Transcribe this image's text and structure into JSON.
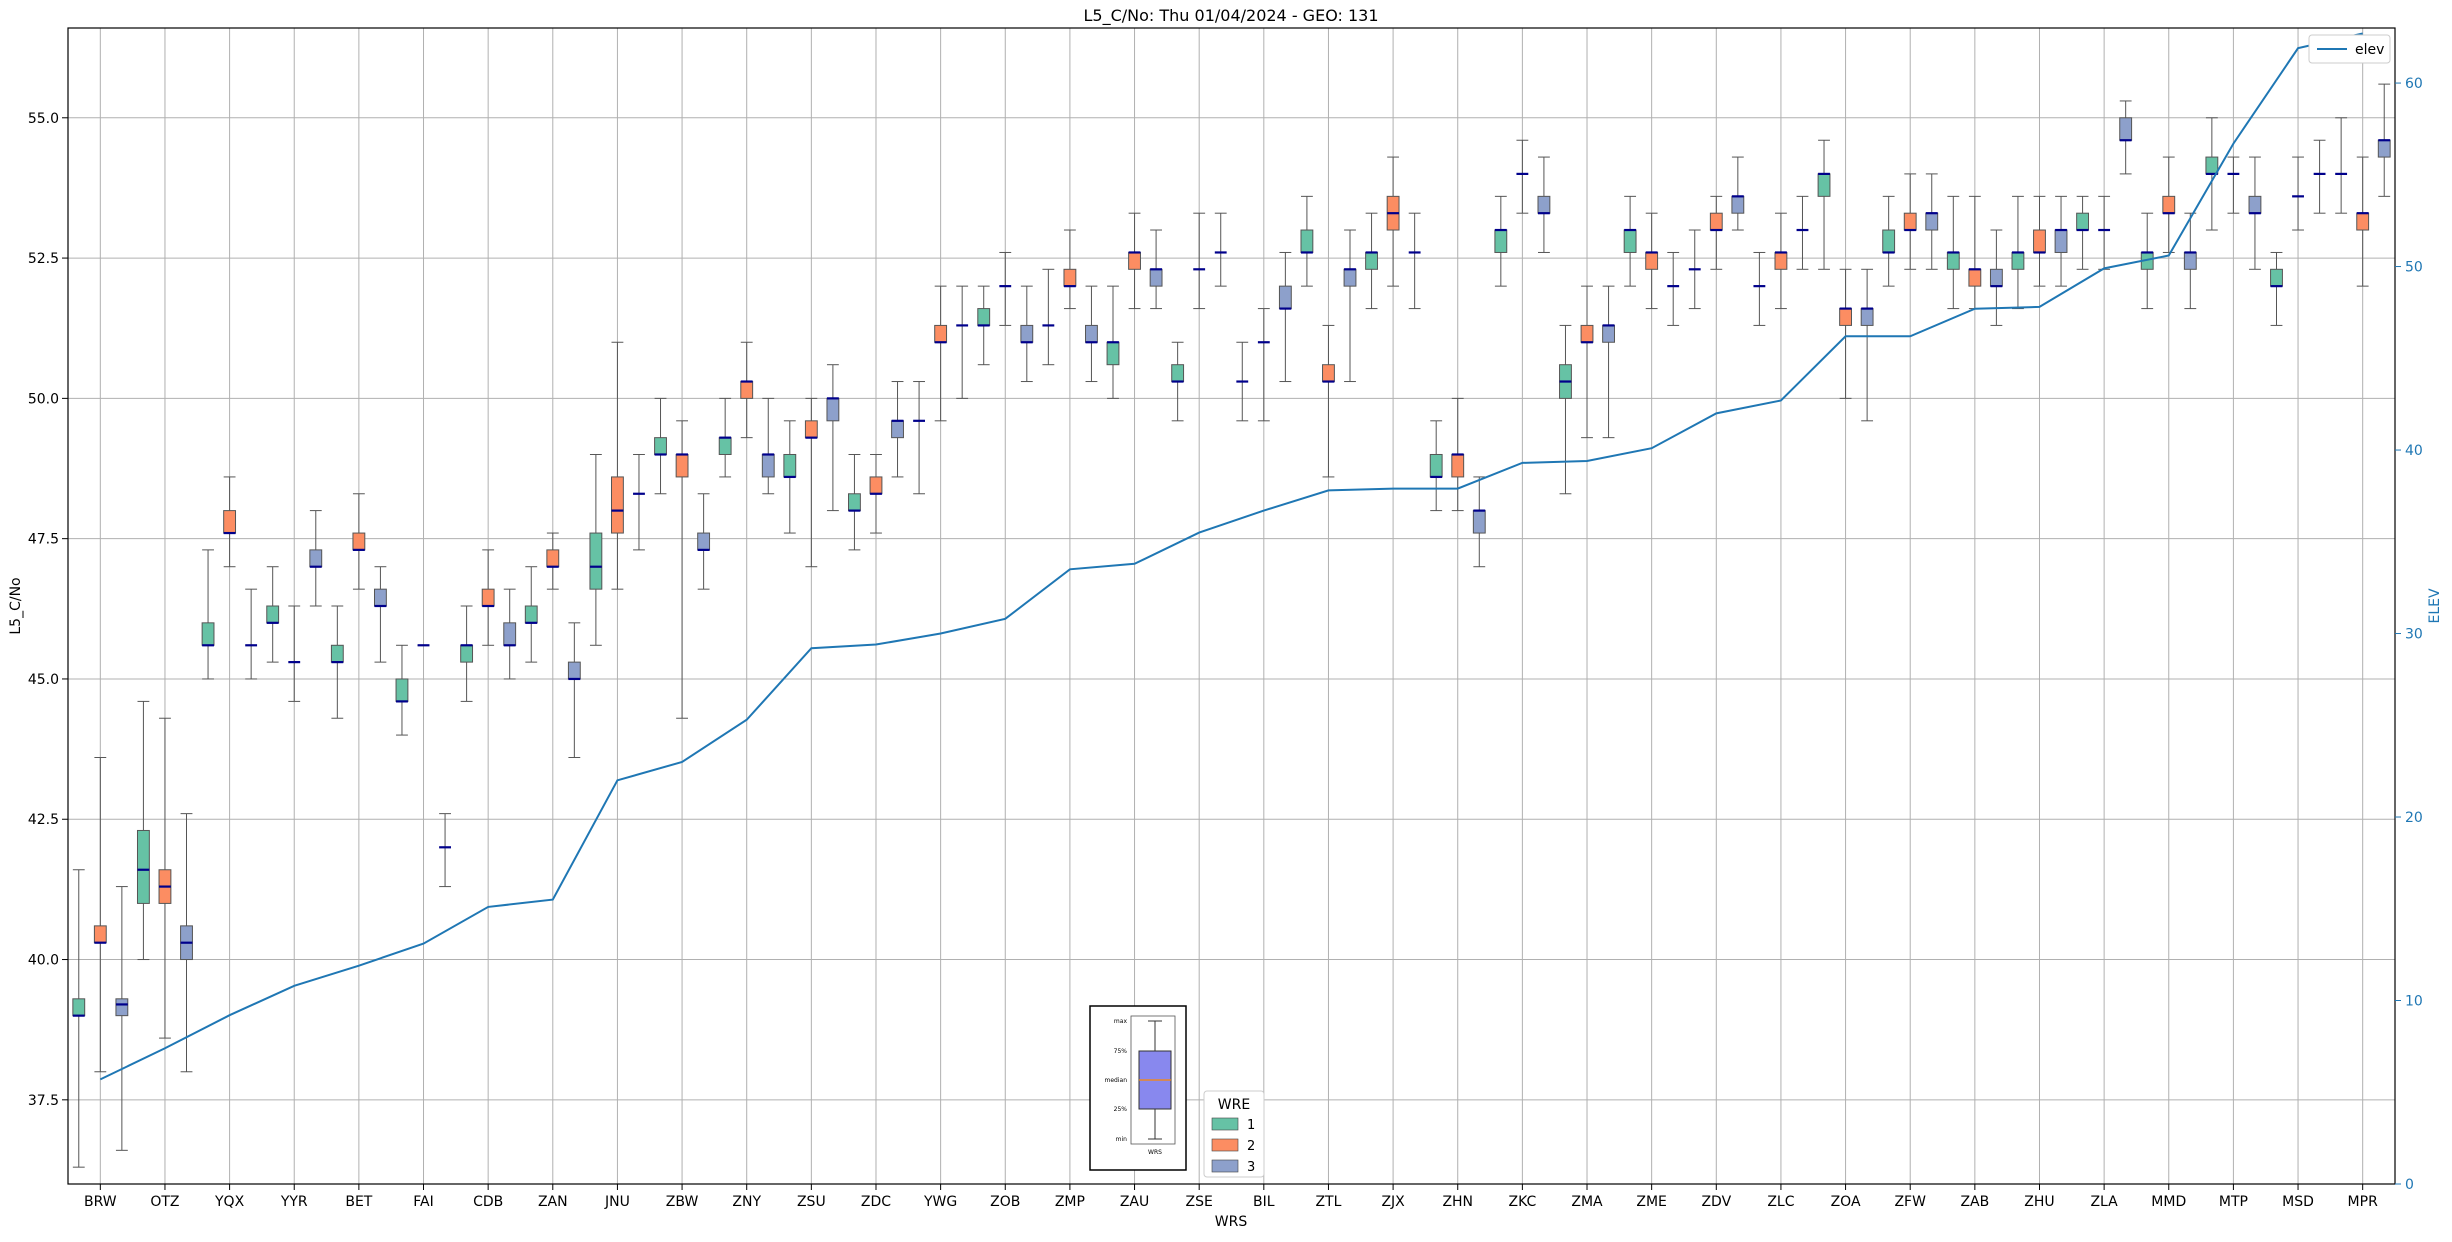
{
  "chart_data": {
    "type": "box",
    "title": "L5_C/No: Thu 01/04/2024 - GEO: 131",
    "xlabel": "WRS",
    "ylabel": "L5_C/No",
    "y2label": "ELEV",
    "ylim": [
      36.0,
      56.6
    ],
    "y2lim": [
      0,
      63
    ],
    "yticks": [
      "37.5",
      "40.0",
      "42.5",
      "45.0",
      "47.5",
      "50.0",
      "52.5",
      "55.0"
    ],
    "y2ticks": [
      "0",
      "10",
      "20",
      "30",
      "40",
      "50",
      "60"
    ],
    "grid": true,
    "categories": [
      "BRW",
      "OTZ",
      "YQX",
      "YYR",
      "BET",
      "FAI",
      "CDB",
      "ZAN",
      "JNU",
      "ZBW",
      "ZNY",
      "ZSU",
      "ZDC",
      "YWG",
      "ZOB",
      "ZMP",
      "ZAU",
      "ZSE",
      "BIL",
      "ZTL",
      "ZJX",
      "ZHN",
      "ZKC",
      "ZMA",
      "ZME",
      "ZDV",
      "ZLC",
      "ZOA",
      "ZFW",
      "ZAB",
      "ZHU",
      "ZLA",
      "MMD",
      "MTP",
      "MSD",
      "MPR"
    ],
    "legend_title": "WRE",
    "legend_placement": "bottom-center",
    "wre_colors": {
      "1": "#66c2a5",
      "2": "#fc8d62",
      "3": "#8da0cb"
    },
    "wre_series": [
      {
        "name": "1",
        "color": "#66c2a5"
      },
      {
        "name": "2",
        "color": "#fc8d62"
      },
      {
        "name": "3",
        "color": "#8da0cb"
      }
    ],
    "median_color": "#00008b",
    "boxes": [
      {
        "cat": "BRW",
        "wre": 1,
        "min": 36.3,
        "q1": 39.0,
        "med": 39.0,
        "q3": 39.3,
        "max": 41.6
      },
      {
        "cat": "BRW",
        "wre": 2,
        "min": 38.0,
        "q1": 40.3,
        "med": 40.3,
        "q3": 40.6,
        "max": 43.6
      },
      {
        "cat": "BRW",
        "wre": 3,
        "min": 36.6,
        "q1": 39.0,
        "med": 39.2,
        "q3": 39.3,
        "max": 41.3
      },
      {
        "cat": "OTZ",
        "wre": 1,
        "min": 40.0,
        "q1": 41.0,
        "med": 41.6,
        "q3": 42.3,
        "max": 44.6
      },
      {
        "cat": "OTZ",
        "wre": 2,
        "min": 38.6,
        "q1": 41.0,
        "med": 41.3,
        "q3": 41.6,
        "max": 44.3
      },
      {
        "cat": "OTZ",
        "wre": 3,
        "min": 38.0,
        "q1": 40.0,
        "med": 40.3,
        "q3": 40.6,
        "max": 42.6
      },
      {
        "cat": "YQX",
        "wre": 1,
        "min": 45.0,
        "q1": 45.6,
        "med": 45.6,
        "q3": 46.0,
        "max": 47.3
      },
      {
        "cat": "YQX",
        "wre": 2,
        "min": 47.0,
        "q1": 47.6,
        "med": 47.6,
        "q3": 48.0,
        "max": 48.6
      },
      {
        "cat": "YQX",
        "wre": 3,
        "min": 45.0,
        "q1": 45.6,
        "med": 45.6,
        "q3": 45.6,
        "max": 46.6
      },
      {
        "cat": "YYR",
        "wre": 1,
        "min": 45.3,
        "q1": 46.0,
        "med": 46.0,
        "q3": 46.3,
        "max": 47.0
      },
      {
        "cat": "YYR",
        "wre": 2,
        "min": 44.6,
        "q1": 45.3,
        "med": 45.3,
        "q3": 45.3,
        "max": 46.3
      },
      {
        "cat": "YYR",
        "wre": 3,
        "min": 46.3,
        "q1": 47.0,
        "med": 47.0,
        "q3": 47.3,
        "max": 48.0
      },
      {
        "cat": "BET",
        "wre": 1,
        "min": 44.3,
        "q1": 45.3,
        "med": 45.3,
        "q3": 45.6,
        "max": 46.3
      },
      {
        "cat": "BET",
        "wre": 2,
        "min": 46.6,
        "q1": 47.3,
        "med": 47.3,
        "q3": 47.6,
        "max": 48.3
      },
      {
        "cat": "BET",
        "wre": 3,
        "min": 45.3,
        "q1": 46.3,
        "med": 46.3,
        "q3": 46.6,
        "max": 47.0
      },
      {
        "cat": "FAI",
        "wre": 1,
        "min": 44.0,
        "q1": 44.6,
        "med": 44.6,
        "q3": 45.0,
        "max": 45.6
      },
      {
        "cat": "FAI",
        "wre": 2,
        "min": 45.6,
        "q1": 45.6,
        "med": 45.6,
        "q3": 45.6,
        "max": 45.6
      },
      {
        "cat": "FAI",
        "wre": 3,
        "min": 41.3,
        "q1": 42.0,
        "med": 42.0,
        "q3": 42.0,
        "max": 42.6
      },
      {
        "cat": "CDB",
        "wre": 1,
        "min": 44.6,
        "q1": 45.3,
        "med": 45.6,
        "q3": 45.6,
        "max": 46.3
      },
      {
        "cat": "CDB",
        "wre": 2,
        "min": 45.6,
        "q1": 46.3,
        "med": 46.3,
        "q3": 46.6,
        "max": 47.3
      },
      {
        "cat": "CDB",
        "wre": 3,
        "min": 45.0,
        "q1": 45.6,
        "med": 45.6,
        "q3": 46.0,
        "max": 46.6
      },
      {
        "cat": "ZAN",
        "wre": 1,
        "min": 45.3,
        "q1": 46.0,
        "med": 46.0,
        "q3": 46.3,
        "max": 47.0
      },
      {
        "cat": "ZAN",
        "wre": 2,
        "min": 46.6,
        "q1": 47.0,
        "med": 47.0,
        "q3": 47.3,
        "max": 47.6
      },
      {
        "cat": "ZAN",
        "wre": 3,
        "min": 43.6,
        "q1": 45.0,
        "med": 45.0,
        "q3": 45.3,
        "max": 46.0
      },
      {
        "cat": "JNU",
        "wre": 1,
        "min": 45.6,
        "q1": 46.6,
        "med": 47.0,
        "q3": 47.6,
        "max": 49.0
      },
      {
        "cat": "JNU",
        "wre": 2,
        "min": 46.6,
        "q1": 47.6,
        "med": 48.0,
        "q3": 48.6,
        "max": 51.0
      },
      {
        "cat": "JNU",
        "wre": 3,
        "min": 47.3,
        "q1": 48.3,
        "med": 48.3,
        "q3": 48.3,
        "max": 49.0
      },
      {
        "cat": "ZBW",
        "wre": 1,
        "min": 48.3,
        "q1": 49.0,
        "med": 49.0,
        "q3": 49.3,
        "max": 50.0
      },
      {
        "cat": "ZBW",
        "wre": 2,
        "min": 44.3,
        "q1": 48.6,
        "med": 49.0,
        "q3": 49.0,
        "max": 49.6
      },
      {
        "cat": "ZBW",
        "wre": 3,
        "min": 46.6,
        "q1": 47.3,
        "med": 47.3,
        "q3": 47.6,
        "max": 48.3
      },
      {
        "cat": "ZNY",
        "wre": 1,
        "min": 48.6,
        "q1": 49.0,
        "med": 49.3,
        "q3": 49.3,
        "max": 50.0
      },
      {
        "cat": "ZNY",
        "wre": 2,
        "min": 49.3,
        "q1": 50.0,
        "med": 50.3,
        "q3": 50.3,
        "max": 51.0
      },
      {
        "cat": "ZNY",
        "wre": 3,
        "min": 48.3,
        "q1": 48.6,
        "med": 49.0,
        "q3": 49.0,
        "max": 50.0
      },
      {
        "cat": "ZSU",
        "wre": 1,
        "min": 47.6,
        "q1": 48.6,
        "med": 48.6,
        "q3": 49.0,
        "max": 49.6
      },
      {
        "cat": "ZSU",
        "wre": 2,
        "min": 47.0,
        "q1": 49.3,
        "med": 49.3,
        "q3": 49.6,
        "max": 50.0
      },
      {
        "cat": "ZSU",
        "wre": 3,
        "min": 48.0,
        "q1": 49.6,
        "med": 50.0,
        "q3": 50.0,
        "max": 50.6
      },
      {
        "cat": "ZDC",
        "wre": 1,
        "min": 47.3,
        "q1": 48.0,
        "med": 48.0,
        "q3": 48.3,
        "max": 49.0
      },
      {
        "cat": "ZDC",
        "wre": 2,
        "min": 47.6,
        "q1": 48.3,
        "med": 48.3,
        "q3": 48.6,
        "max": 49.0
      },
      {
        "cat": "ZDC",
        "wre": 3,
        "min": 48.6,
        "q1": 49.3,
        "med": 49.6,
        "q3": 49.6,
        "max": 50.3
      },
      {
        "cat": "YWG",
        "wre": 1,
        "min": 48.3,
        "q1": 49.6,
        "med": 49.6,
        "q3": 49.6,
        "max": 50.3
      },
      {
        "cat": "YWG",
        "wre": 2,
        "min": 49.6,
        "q1": 51.0,
        "med": 51.0,
        "q3": 51.3,
        "max": 52.0
      },
      {
        "cat": "YWG",
        "wre": 3,
        "min": 50.0,
        "q1": 51.3,
        "med": 51.3,
        "q3": 51.3,
        "max": 52.0
      },
      {
        "cat": "ZOB",
        "wre": 1,
        "min": 50.6,
        "q1": 51.3,
        "med": 51.3,
        "q3": 51.6,
        "max": 52.0
      },
      {
        "cat": "ZOB",
        "wre": 2,
        "min": 51.3,
        "q1": 52.0,
        "med": 52.0,
        "q3": 52.0,
        "max": 52.6
      },
      {
        "cat": "ZOB",
        "wre": 3,
        "min": 50.3,
        "q1": 51.0,
        "med": 51.0,
        "q3": 51.3,
        "max": 52.0
      },
      {
        "cat": "ZMP",
        "wre": 1,
        "min": 50.6,
        "q1": 51.3,
        "med": 51.3,
        "q3": 51.3,
        "max": 52.3
      },
      {
        "cat": "ZMP",
        "wre": 2,
        "min": 51.6,
        "q1": 52.0,
        "med": 52.0,
        "q3": 52.3,
        "max": 53.0
      },
      {
        "cat": "ZMP",
        "wre": 3,
        "min": 50.3,
        "q1": 51.0,
        "med": 51.0,
        "q3": 51.3,
        "max": 52.0
      },
      {
        "cat": "ZAU",
        "wre": 1,
        "min": 50.0,
        "q1": 50.6,
        "med": 51.0,
        "q3": 51.0,
        "max": 52.0
      },
      {
        "cat": "ZAU",
        "wre": 2,
        "min": 51.6,
        "q1": 52.3,
        "med": 52.6,
        "q3": 52.6,
        "max": 53.3
      },
      {
        "cat": "ZAU",
        "wre": 3,
        "min": 51.6,
        "q1": 52.0,
        "med": 52.3,
        "q3": 52.3,
        "max": 53.0
      },
      {
        "cat": "ZSE",
        "wre": 1,
        "min": 49.6,
        "q1": 50.3,
        "med": 50.3,
        "q3": 50.6,
        "max": 51.0
      },
      {
        "cat": "ZSE",
        "wre": 2,
        "min": 51.6,
        "q1": 52.3,
        "med": 52.3,
        "q3": 52.3,
        "max": 53.3
      },
      {
        "cat": "ZSE",
        "wre": 3,
        "min": 52.0,
        "q1": 52.6,
        "med": 52.6,
        "q3": 52.6,
        "max": 53.3
      },
      {
        "cat": "BIL",
        "wre": 1,
        "min": 49.6,
        "q1": 50.3,
        "med": 50.3,
        "q3": 50.3,
        "max": 51.0
      },
      {
        "cat": "BIL",
        "wre": 2,
        "min": 49.6,
        "q1": 51.0,
        "med": 51.0,
        "q3": 51.0,
        "max": 51.6
      },
      {
        "cat": "BIL",
        "wre": 3,
        "min": 50.3,
        "q1": 51.6,
        "med": 51.6,
        "q3": 52.0,
        "max": 52.6
      },
      {
        "cat": "ZTL",
        "wre": 1,
        "min": 52.0,
        "q1": 52.6,
        "med": 52.6,
        "q3": 53.0,
        "max": 53.6
      },
      {
        "cat": "ZTL",
        "wre": 2,
        "min": 48.6,
        "q1": 50.3,
        "med": 50.3,
        "q3": 50.6,
        "max": 51.3
      },
      {
        "cat": "ZTL",
        "wre": 3,
        "min": 50.3,
        "q1": 52.0,
        "med": 52.3,
        "q3": 52.3,
        "max": 53.0
      },
      {
        "cat": "ZJX",
        "wre": 1,
        "min": 51.6,
        "q1": 52.3,
        "med": 52.6,
        "q3": 52.6,
        "max": 53.3
      },
      {
        "cat": "ZJX",
        "wre": 2,
        "min": 52.0,
        "q1": 53.0,
        "med": 53.3,
        "q3": 53.6,
        "max": 54.3
      },
      {
        "cat": "ZJX",
        "wre": 3,
        "min": 51.6,
        "q1": 52.6,
        "med": 52.6,
        "q3": 52.6,
        "max": 53.3
      },
      {
        "cat": "ZHN",
        "wre": 1,
        "min": 48.0,
        "q1": 48.6,
        "med": 48.6,
        "q3": 49.0,
        "max": 49.6
      },
      {
        "cat": "ZHN",
        "wre": 2,
        "min": 48.0,
        "q1": 48.6,
        "med": 49.0,
        "q3": 49.0,
        "max": 50.0
      },
      {
        "cat": "ZHN",
        "wre": 3,
        "min": 47.0,
        "q1": 47.6,
        "med": 48.0,
        "q3": 48.0,
        "max": 48.6
      },
      {
        "cat": "ZKC",
        "wre": 1,
        "min": 52.0,
        "q1": 52.6,
        "med": 53.0,
        "q3": 53.0,
        "max": 53.6
      },
      {
        "cat": "ZKC",
        "wre": 2,
        "min": 53.3,
        "q1": 54.0,
        "med": 54.0,
        "q3": 54.0,
        "max": 54.6
      },
      {
        "cat": "ZKC",
        "wre": 3,
        "min": 52.6,
        "q1": 53.3,
        "med": 53.3,
        "q3": 53.6,
        "max": 54.3
      },
      {
        "cat": "ZMA",
        "wre": 1,
        "min": 48.3,
        "q1": 50.0,
        "med": 50.3,
        "q3": 50.6,
        "max": 51.3
      },
      {
        "cat": "ZMA",
        "wre": 2,
        "min": 49.3,
        "q1": 51.0,
        "med": 51.0,
        "q3": 51.3,
        "max": 52.0
      },
      {
        "cat": "ZMA",
        "wre": 3,
        "min": 49.3,
        "q1": 51.0,
        "med": 51.3,
        "q3": 51.3,
        "max": 52.0
      },
      {
        "cat": "ZME",
        "wre": 1,
        "min": 52.0,
        "q1": 52.6,
        "med": 53.0,
        "q3": 53.0,
        "max": 53.6
      },
      {
        "cat": "ZME",
        "wre": 2,
        "min": 51.6,
        "q1": 52.3,
        "med": 52.6,
        "q3": 52.6,
        "max": 53.3
      },
      {
        "cat": "ZME",
        "wre": 3,
        "min": 51.3,
        "q1": 52.0,
        "med": 52.0,
        "q3": 52.0,
        "max": 52.6
      },
      {
        "cat": "ZDV",
        "wre": 1,
        "min": 51.6,
        "q1": 52.3,
        "med": 52.3,
        "q3": 52.3,
        "max": 53.0
      },
      {
        "cat": "ZDV",
        "wre": 2,
        "min": 52.3,
        "q1": 53.0,
        "med": 53.0,
        "q3": 53.3,
        "max": 53.6
      },
      {
        "cat": "ZDV",
        "wre": 3,
        "min": 53.0,
        "q1": 53.3,
        "med": 53.6,
        "q3": 53.6,
        "max": 54.3
      },
      {
        "cat": "ZLC",
        "wre": 1,
        "min": 51.3,
        "q1": 52.0,
        "med": 52.0,
        "q3": 52.0,
        "max": 52.6
      },
      {
        "cat": "ZLC",
        "wre": 2,
        "min": 51.6,
        "q1": 52.3,
        "med": 52.6,
        "q3": 52.6,
        "max": 53.3
      },
      {
        "cat": "ZLC",
        "wre": 3,
        "min": 52.3,
        "q1": 53.0,
        "med": 53.0,
        "q3": 53.0,
        "max": 53.6
      },
      {
        "cat": "ZOA",
        "wre": 1,
        "min": 52.3,
        "q1": 53.6,
        "med": 54.0,
        "q3": 54.0,
        "max": 54.6
      },
      {
        "cat": "ZOA",
        "wre": 2,
        "min": 50.0,
        "q1": 51.3,
        "med": 51.6,
        "q3": 51.6,
        "max": 52.3
      },
      {
        "cat": "ZOA",
        "wre": 3,
        "min": 49.6,
        "q1": 51.3,
        "med": 51.6,
        "q3": 51.6,
        "max": 52.3
      },
      {
        "cat": "ZFW",
        "wre": 1,
        "min": 52.0,
        "q1": 52.6,
        "med": 52.6,
        "q3": 53.0,
        "max": 53.6
      },
      {
        "cat": "ZFW",
        "wre": 2,
        "min": 52.3,
        "q1": 53.0,
        "med": 53.0,
        "q3": 53.3,
        "max": 54.0
      },
      {
        "cat": "ZFW",
        "wre": 3,
        "min": 52.3,
        "q1": 53.0,
        "med": 53.3,
        "q3": 53.3,
        "max": 54.0
      },
      {
        "cat": "ZAB",
        "wre": 1,
        "min": 51.6,
        "q1": 52.3,
        "med": 52.6,
        "q3": 52.6,
        "max": 53.6
      },
      {
        "cat": "ZAB",
        "wre": 2,
        "min": 51.6,
        "q1": 52.0,
        "med": 52.3,
        "q3": 52.3,
        "max": 53.6
      },
      {
        "cat": "ZAB",
        "wre": 3,
        "min": 51.3,
        "q1": 52.0,
        "med": 52.0,
        "q3": 52.3,
        "max": 53.0
      },
      {
        "cat": "ZHU",
        "wre": 1,
        "min": 51.6,
        "q1": 52.3,
        "med": 52.6,
        "q3": 52.6,
        "max": 53.6
      },
      {
        "cat": "ZHU",
        "wre": 2,
        "min": 52.0,
        "q1": 52.6,
        "med": 52.6,
        "q3": 53.0,
        "max": 53.6
      },
      {
        "cat": "ZHU",
        "wre": 3,
        "min": 52.0,
        "q1": 52.6,
        "med": 53.0,
        "q3": 53.0,
        "max": 53.6
      },
      {
        "cat": "ZLA",
        "wre": 1,
        "min": 52.3,
        "q1": 53.0,
        "med": 53.0,
        "q3": 53.3,
        "max": 53.6
      },
      {
        "cat": "ZLA",
        "wre": 2,
        "min": 52.3,
        "q1": 53.0,
        "med": 53.0,
        "q3": 53.0,
        "max": 53.6
      },
      {
        "cat": "ZLA",
        "wre": 3,
        "min": 54.0,
        "q1": 54.6,
        "med": 54.6,
        "q3": 55.0,
        "max": 55.3
      },
      {
        "cat": "MMD",
        "wre": 1,
        "min": 51.6,
        "q1": 52.3,
        "med": 52.6,
        "q3": 52.6,
        "max": 53.3
      },
      {
        "cat": "MMD",
        "wre": 2,
        "min": 52.6,
        "q1": 53.3,
        "med": 53.3,
        "q3": 53.6,
        "max": 54.3
      },
      {
        "cat": "MMD",
        "wre": 3,
        "min": 51.6,
        "q1": 52.3,
        "med": 52.6,
        "q3": 52.6,
        "max": 53.3
      },
      {
        "cat": "MTP",
        "wre": 1,
        "min": 53.0,
        "q1": 54.0,
        "med": 54.0,
        "q3": 54.3,
        "max": 55.0
      },
      {
        "cat": "MTP",
        "wre": 2,
        "min": 53.3,
        "q1": 54.0,
        "med": 54.0,
        "q3": 54.0,
        "max": 54.3
      },
      {
        "cat": "MTP",
        "wre": 3,
        "min": 52.3,
        "q1": 53.3,
        "med": 53.3,
        "q3": 53.6,
        "max": 54.3
      },
      {
        "cat": "MSD",
        "wre": 1,
        "min": 51.3,
        "q1": 52.0,
        "med": 52.0,
        "q3": 52.3,
        "max": 52.6
      },
      {
        "cat": "MSD",
        "wre": 2,
        "min": 53.0,
        "q1": 53.6,
        "med": 53.6,
        "q3": 53.6,
        "max": 54.3
      },
      {
        "cat": "MSD",
        "wre": 3,
        "min": 53.3,
        "q1": 54.0,
        "med": 54.0,
        "q3": 54.0,
        "max": 54.6
      },
      {
        "cat": "MPR",
        "wre": 1,
        "min": 53.3,
        "q1": 54.0,
        "med": 54.0,
        "q3": 54.0,
        "max": 55.0
      },
      {
        "cat": "MPR",
        "wre": 2,
        "min": 52.0,
        "q1": 53.0,
        "med": 53.3,
        "q3": 53.3,
        "max": 54.3
      },
      {
        "cat": "MPR",
        "wre": 3,
        "min": 53.6,
        "q1": 54.3,
        "med": 54.6,
        "q3": 54.6,
        "max": 55.6
      }
    ],
    "elev_series": {
      "name": "elev",
      "color": "#1f77b4",
      "values": [
        5.7,
        7.4,
        9.2,
        10.8,
        11.9,
        13.1,
        15.1,
        15.5,
        22.0,
        23.0,
        25.3,
        29.2,
        29.4,
        30.0,
        30.8,
        33.5,
        33.8,
        35.5,
        36.7,
        37.8,
        37.9,
        37.9,
        39.3,
        39.4,
        40.1,
        42.0,
        42.7,
        46.2,
        46.2,
        47.7,
        47.8,
        49.9,
        50.6,
        56.7,
        61.9,
        62.7
      ]
    },
    "inset_legend": {
      "labels": [
        "max",
        "75%",
        "median",
        "25%",
        "min"
      ],
      "xtick": "WRS",
      "box_color": "#8888ee",
      "median_color": "#ff8800"
    }
  }
}
